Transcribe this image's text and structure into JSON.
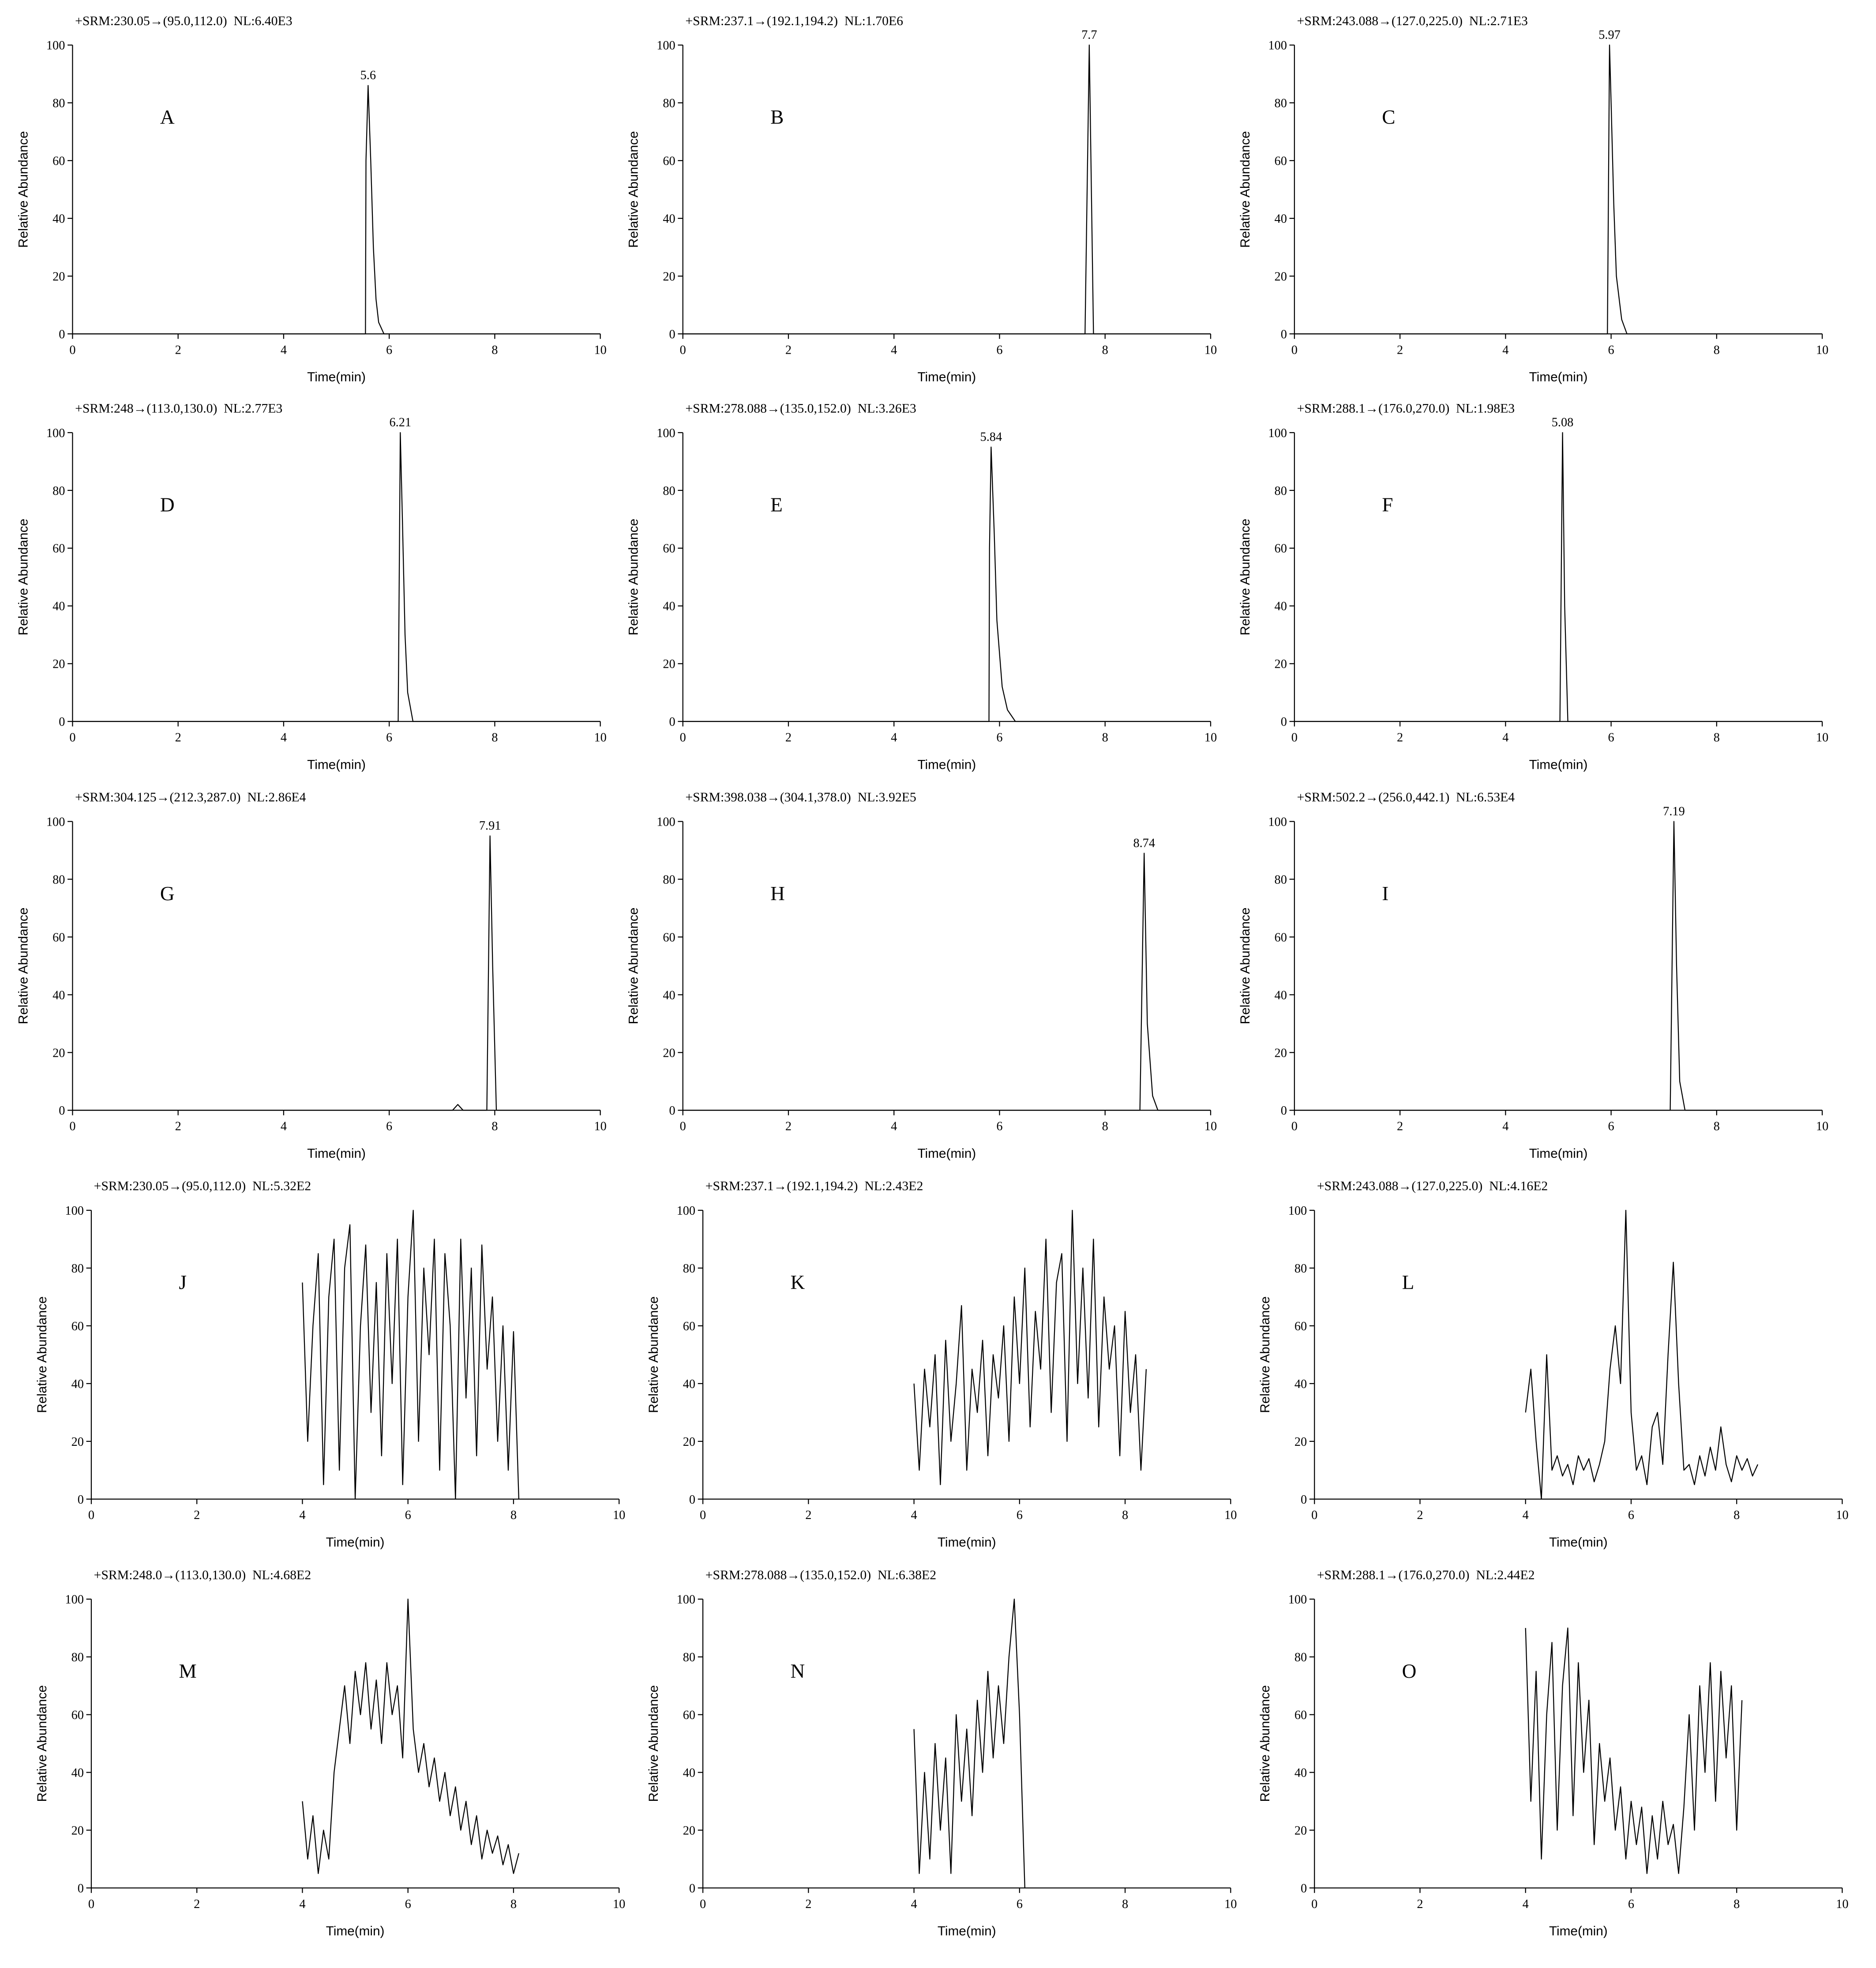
{
  "chart_data": [
    {
      "type": "line",
      "title": "+SRM:230.05→(95.0,112.0)  NL:6.40E3",
      "panel": "A",
      "peak_label": "5.6",
      "x_label": "Time(min)",
      "y_label": "Relative Abundance",
      "color": "#000000",
      "x": [
        0,
        5.55,
        5.56,
        5.6,
        5.65,
        5.7,
        5.75,
        5.8,
        5.9,
        10
      ],
      "values": [
        0,
        0,
        60,
        86,
        60,
        30,
        12,
        4,
        0,
        0
      ],
      "xlim": [
        0,
        10
      ],
      "ylim": [
        0,
        100
      ],
      "xticks": [
        0,
        2,
        4,
        6,
        8,
        10
      ],
      "yticks": [
        0,
        20,
        40,
        60,
        80,
        100
      ]
    },
    {
      "type": "line",
      "title": "+SRM:237.1→(192.1,194.2)  NL:1.70E6",
      "panel": "B",
      "peak_label": "7.7",
      "x_label": "Time(min)",
      "y_label": "Relative Abundance",
      "color": "#000000",
      "x": [
        0,
        7.62,
        7.66,
        7.7,
        7.74,
        7.78,
        10
      ],
      "values": [
        0,
        0,
        50,
        100,
        50,
        0,
        0
      ],
      "xlim": [
        0,
        10
      ],
      "ylim": [
        0,
        100
      ],
      "xticks": [
        0,
        2,
        4,
        6,
        8,
        10
      ],
      "yticks": [
        0,
        20,
        40,
        60,
        80,
        100
      ]
    },
    {
      "type": "line",
      "title": "+SRM:243.088→(127.0,225.0)  NL:2.71E3",
      "panel": "C",
      "peak_label": "5.97",
      "x_label": "Time(min)",
      "y_label": "Relative Abundance",
      "color": "#000000",
      "x": [
        0,
        5.93,
        5.97,
        6.0,
        6.05,
        6.1,
        6.2,
        6.3,
        10
      ],
      "values": [
        0,
        0,
        100,
        80,
        45,
        20,
        5,
        0,
        0
      ],
      "xlim": [
        0,
        10
      ],
      "ylim": [
        0,
        100
      ],
      "xticks": [
        0,
        2,
        4,
        6,
        8,
        10
      ],
      "yticks": [
        0,
        20,
        40,
        60,
        80,
        100
      ]
    },
    {
      "type": "line",
      "title": "+SRM:248→(113.0,130.0)  NL:2.77E3",
      "panel": "D",
      "peak_label": "6.21",
      "x_label": "Time(min)",
      "y_label": "Relative Abundance",
      "color": "#000000",
      "x": [
        0,
        6.17,
        6.21,
        6.25,
        6.3,
        6.35,
        6.45,
        10
      ],
      "values": [
        0,
        0,
        100,
        70,
        30,
        10,
        0,
        0
      ],
      "xlim": [
        0,
        10
      ],
      "ylim": [
        0,
        100
      ],
      "xticks": [
        0,
        2,
        4,
        6,
        8,
        10
      ],
      "yticks": [
        0,
        20,
        40,
        60,
        80,
        100
      ]
    },
    {
      "type": "line",
      "title": "+SRM:278.088→(135.0,152.0)  NL:3.26E3",
      "panel": "E",
      "peak_label": "5.84",
      "x_label": "Time(min)",
      "y_label": "Relative Abundance",
      "color": "#000000",
      "x": [
        0,
        5.8,
        5.81,
        5.84,
        5.9,
        5.95,
        6.05,
        6.15,
        6.3,
        10
      ],
      "values": [
        0,
        0,
        60,
        95,
        65,
        35,
        12,
        4,
        0,
        0
      ],
      "xlim": [
        0,
        10
      ],
      "ylim": [
        0,
        100
      ],
      "xticks": [
        0,
        2,
        4,
        6,
        8,
        10
      ],
      "yticks": [
        0,
        20,
        40,
        60,
        80,
        100
      ]
    },
    {
      "type": "line",
      "title": "+SRM:288.1→(176.0,270.0)  NL:1.98E3",
      "panel": "F",
      "peak_label": "5.08",
      "x_label": "Time(min)",
      "y_label": "Relative Abundance",
      "color": "#000000",
      "x": [
        0,
        5.03,
        5.08,
        5.12,
        5.18,
        10
      ],
      "values": [
        0,
        0,
        100,
        40,
        0,
        0
      ],
      "xlim": [
        0,
        10
      ],
      "ylim": [
        0,
        100
      ],
      "xticks": [
        0,
        2,
        4,
        6,
        8,
        10
      ],
      "yticks": [
        0,
        20,
        40,
        60,
        80,
        100
      ]
    },
    {
      "type": "line",
      "title": "+SRM:304.125→(212.3,287.0)  NL:2.86E4",
      "panel": "G",
      "peak_label": "7.91",
      "x_label": "Time(min)",
      "y_label": "Relative Abundance",
      "color": "#000000",
      "x": [
        0,
        7.2,
        7.3,
        7.4,
        7.85,
        7.91,
        7.96,
        8.03,
        10
      ],
      "values": [
        0,
        0,
        2,
        0,
        0,
        95,
        50,
        0,
        0
      ],
      "xlim": [
        0,
        10
      ],
      "ylim": [
        0,
        100
      ],
      "xticks": [
        0,
        2,
        4,
        6,
        8,
        10
      ],
      "yticks": [
        0,
        20,
        40,
        60,
        80,
        100
      ]
    },
    {
      "type": "line",
      "title": "+SRM:398.038→(304.1,378.0)  NL:3.92E5",
      "panel": "H",
      "peak_label": "8.74",
      "x_label": "Time(min)",
      "y_label": "Relative Abundance",
      "color": "#000000",
      "x": [
        0,
        8.66,
        8.74,
        8.8,
        8.9,
        9.0,
        10
      ],
      "values": [
        0,
        0,
        89,
        30,
        5,
        0,
        0
      ],
      "xlim": [
        0,
        10
      ],
      "ylim": [
        0,
        100
      ],
      "xticks": [
        0,
        2,
        4,
        6,
        8,
        10
      ],
      "yticks": [
        0,
        20,
        40,
        60,
        80,
        100
      ]
    },
    {
      "type": "line",
      "title": "+SRM:502.2→(256.0,442.1)  NL:6.53E4",
      "panel": "I",
      "peak_label": "7.19",
      "x_label": "Time(min)",
      "y_label": "Relative Abundance",
      "color": "#000000",
      "x": [
        0,
        7.12,
        7.19,
        7.24,
        7.3,
        7.4,
        10
      ],
      "values": [
        0,
        0,
        100,
        50,
        10,
        0,
        0
      ],
      "xlim": [
        0,
        10
      ],
      "ylim": [
        0,
        100
      ],
      "xticks": [
        0,
        2,
        4,
        6,
        8,
        10
      ],
      "yticks": [
        0,
        20,
        40,
        60,
        80,
        100
      ]
    },
    {
      "type": "line",
      "title": "+SRM:230.05→(95.0,112.0)  NL:5.32E2",
      "panel": "J",
      "x_label": "Time(min)",
      "y_label": "Relative Abundance",
      "color": "#000000",
      "x": [
        4.0,
        4.1,
        4.2,
        4.3,
        4.4,
        4.5,
        4.6,
        4.7,
        4.8,
        4.9,
        5.0,
        5.1,
        5.2,
        5.3,
        5.4,
        5.5,
        5.6,
        5.7,
        5.8,
        5.9,
        6.0,
        6.1,
        6.2,
        6.3,
        6.4,
        6.5,
        6.6,
        6.7,
        6.8,
        6.9,
        7.0,
        7.1,
        7.2,
        7.3,
        7.4,
        7.5,
        7.6,
        7.7,
        7.8,
        7.9,
        8.0,
        8.1
      ],
      "values": [
        75,
        20,
        60,
        85,
        5,
        70,
        90,
        10,
        80,
        95,
        0,
        60,
        88,
        30,
        75,
        15,
        85,
        40,
        90,
        5,
        70,
        100,
        20,
        80,
        50,
        90,
        10,
        85,
        60,
        0,
        90,
        35,
        80,
        15,
        88,
        45,
        70,
        20,
        60,
        10,
        58,
        0
      ],
      "xlim": [
        0,
        10
      ],
      "ylim": [
        0,
        100
      ],
      "xticks": [
        0,
        2,
        4,
        6,
        8,
        10
      ],
      "yticks": [
        0,
        20,
        40,
        60,
        80,
        100
      ]
    },
    {
      "type": "line",
      "title": "+SRM:237.1→(192.1,194.2)  NL:2.43E2",
      "panel": "K",
      "x_label": "Time(min)",
      "y_label": "Relative Abundance",
      "color": "#000000",
      "x": [
        4.0,
        4.1,
        4.2,
        4.3,
        4.4,
        4.5,
        4.6,
        4.7,
        4.8,
        4.9,
        5.0,
        5.1,
        5.2,
        5.3,
        5.4,
        5.5,
        5.6,
        5.7,
        5.8,
        5.9,
        6.0,
        6.1,
        6.2,
        6.3,
        6.4,
        6.5,
        6.6,
        6.7,
        6.8,
        6.9,
        7.0,
        7.1,
        7.2,
        7.3,
        7.4,
        7.5,
        7.6,
        7.7,
        7.8,
        7.9,
        8.0,
        8.1,
        8.2,
        8.3,
        8.4
      ],
      "values": [
        40,
        10,
        45,
        25,
        50,
        5,
        55,
        20,
        40,
        67,
        10,
        45,
        30,
        55,
        15,
        50,
        35,
        60,
        20,
        70,
        40,
        80,
        25,
        65,
        45,
        90,
        30,
        75,
        85,
        20,
        100,
        40,
        80,
        35,
        90,
        25,
        70,
        45,
        60,
        15,
        65,
        30,
        50,
        10,
        45
      ],
      "xlim": [
        0,
        10
      ],
      "ylim": [
        0,
        100
      ],
      "xticks": [
        0,
        2,
        4,
        6,
        8,
        10
      ],
      "yticks": [
        0,
        20,
        40,
        60,
        80,
        100
      ]
    },
    {
      "type": "line",
      "title": "+SRM:243.088→(127.0,225.0)  NL:4.16E2",
      "panel": "L",
      "x_label": "Time(min)",
      "y_label": "Relative Abundance",
      "color": "#000000",
      "x": [
        4.0,
        4.1,
        4.2,
        4.3,
        4.4,
        4.5,
        4.6,
        4.7,
        4.8,
        4.9,
        5.0,
        5.1,
        5.2,
        5.3,
        5.4,
        5.5,
        5.6,
        5.7,
        5.8,
        5.9,
        6.0,
        6.1,
        6.2,
        6.3,
        6.4,
        6.5,
        6.6,
        6.7,
        6.8,
        6.9,
        7.0,
        7.1,
        7.2,
        7.3,
        7.4,
        7.5,
        7.6,
        7.7,
        7.8,
        7.9,
        8.0,
        8.1,
        8.2,
        8.3,
        8.4
      ],
      "values": [
        30,
        45,
        20,
        0,
        50,
        10,
        15,
        8,
        12,
        5,
        15,
        10,
        14,
        6,
        12,
        20,
        45,
        60,
        40,
        100,
        30,
        10,
        15,
        5,
        25,
        30,
        12,
        50,
        82,
        40,
        10,
        12,
        5,
        15,
        8,
        18,
        10,
        25,
        12,
        6,
        15,
        10,
        14,
        8,
        12
      ],
      "xlim": [
        0,
        10
      ],
      "ylim": [
        0,
        100
      ],
      "xticks": [
        0,
        2,
        4,
        6,
        8,
        10
      ],
      "yticks": [
        0,
        20,
        40,
        60,
        80,
        100
      ]
    },
    {
      "type": "line",
      "title": "+SRM:248.0→(113.0,130.0)  NL:4.68E2",
      "panel": "M",
      "x_label": "Time(min)",
      "y_label": "Relative Abundance",
      "color": "#000000",
      "x": [
        4.0,
        4.1,
        4.2,
        4.3,
        4.4,
        4.5,
        4.6,
        4.7,
        4.8,
        4.9,
        5.0,
        5.1,
        5.2,
        5.3,
        5.4,
        5.5,
        5.6,
        5.7,
        5.8,
        5.9,
        6.0,
        6.1,
        6.2,
        6.3,
        6.4,
        6.5,
        6.6,
        6.7,
        6.8,
        6.9,
        7.0,
        7.1,
        7.2,
        7.3,
        7.4,
        7.5,
        7.6,
        7.7,
        7.8,
        7.9,
        8.0,
        8.1
      ],
      "values": [
        30,
        10,
        25,
        5,
        20,
        10,
        40,
        55,
        70,
        50,
        75,
        60,
        78,
        55,
        72,
        50,
        78,
        60,
        70,
        45,
        100,
        55,
        40,
        50,
        35,
        45,
        30,
        40,
        25,
        35,
        20,
        30,
        15,
        25,
        10,
        20,
        12,
        18,
        8,
        15,
        5,
        12
      ],
      "xlim": [
        0,
        10
      ],
      "ylim": [
        0,
        100
      ],
      "xticks": [
        0,
        2,
        4,
        6,
        8,
        10
      ],
      "yticks": [
        0,
        20,
        40,
        60,
        80,
        100
      ]
    },
    {
      "type": "line",
      "title": "+SRM:278.088→(135.0,152.0)  NL:6.38E2",
      "panel": "N",
      "x_label": "Time(min)",
      "y_label": "Relative Abundance",
      "color": "#000000",
      "x": [
        4.0,
        4.1,
        4.2,
        4.3,
        4.4,
        4.5,
        4.6,
        4.7,
        4.8,
        4.9,
        5.0,
        5.1,
        5.2,
        5.3,
        5.4,
        5.5,
        5.6,
        5.7,
        5.8,
        5.9,
        6.0,
        6.1
      ],
      "values": [
        55,
        5,
        40,
        10,
        50,
        20,
        45,
        5,
        60,
        30,
        55,
        25,
        65,
        40,
        75,
        45,
        70,
        50,
        80,
        100,
        60,
        0
      ],
      "xlim": [
        0,
        10
      ],
      "ylim": [
        0,
        100
      ],
      "xticks": [
        0,
        2,
        4,
        6,
        8,
        10
      ],
      "yticks": [
        0,
        20,
        40,
        60,
        80,
        100
      ]
    },
    {
      "type": "line",
      "title": "+SRM:288.1→(176.0,270.0)  NL:2.44E2",
      "panel": "O",
      "x_label": "Time(min)",
      "y_label": "Relative Abundance",
      "color": "#000000",
      "x": [
        4.0,
        4.1,
        4.2,
        4.3,
        4.4,
        4.5,
        4.6,
        4.7,
        4.8,
        4.9,
        5.0,
        5.1,
        5.2,
        5.3,
        5.4,
        5.5,
        5.6,
        5.7,
        5.8,
        5.9,
        6.0,
        6.1,
        6.2,
        6.3,
        6.4,
        6.5,
        6.6,
        6.7,
        6.8,
        6.9,
        7.0,
        7.1,
        7.2,
        7.3,
        7.4,
        7.5,
        7.6,
        7.7,
        7.8,
        7.9,
        8.0,
        8.1
      ],
      "values": [
        90,
        30,
        75,
        10,
        60,
        85,
        20,
        70,
        90,
        25,
        78,
        40,
        65,
        15,
        50,
        30,
        45,
        20,
        35,
        10,
        30,
        15,
        28,
        5,
        25,
        10,
        30,
        15,
        22,
        5,
        28,
        60,
        20,
        70,
        40,
        78,
        30,
        75,
        45,
        70,
        20,
        65
      ],
      "xlim": [
        0,
        10
      ],
      "ylim": [
        0,
        100
      ],
      "xticks": [
        0,
        2,
        4,
        6,
        8,
        10
      ],
      "yticks": [
        0,
        20,
        40,
        60,
        80,
        100
      ]
    }
  ]
}
